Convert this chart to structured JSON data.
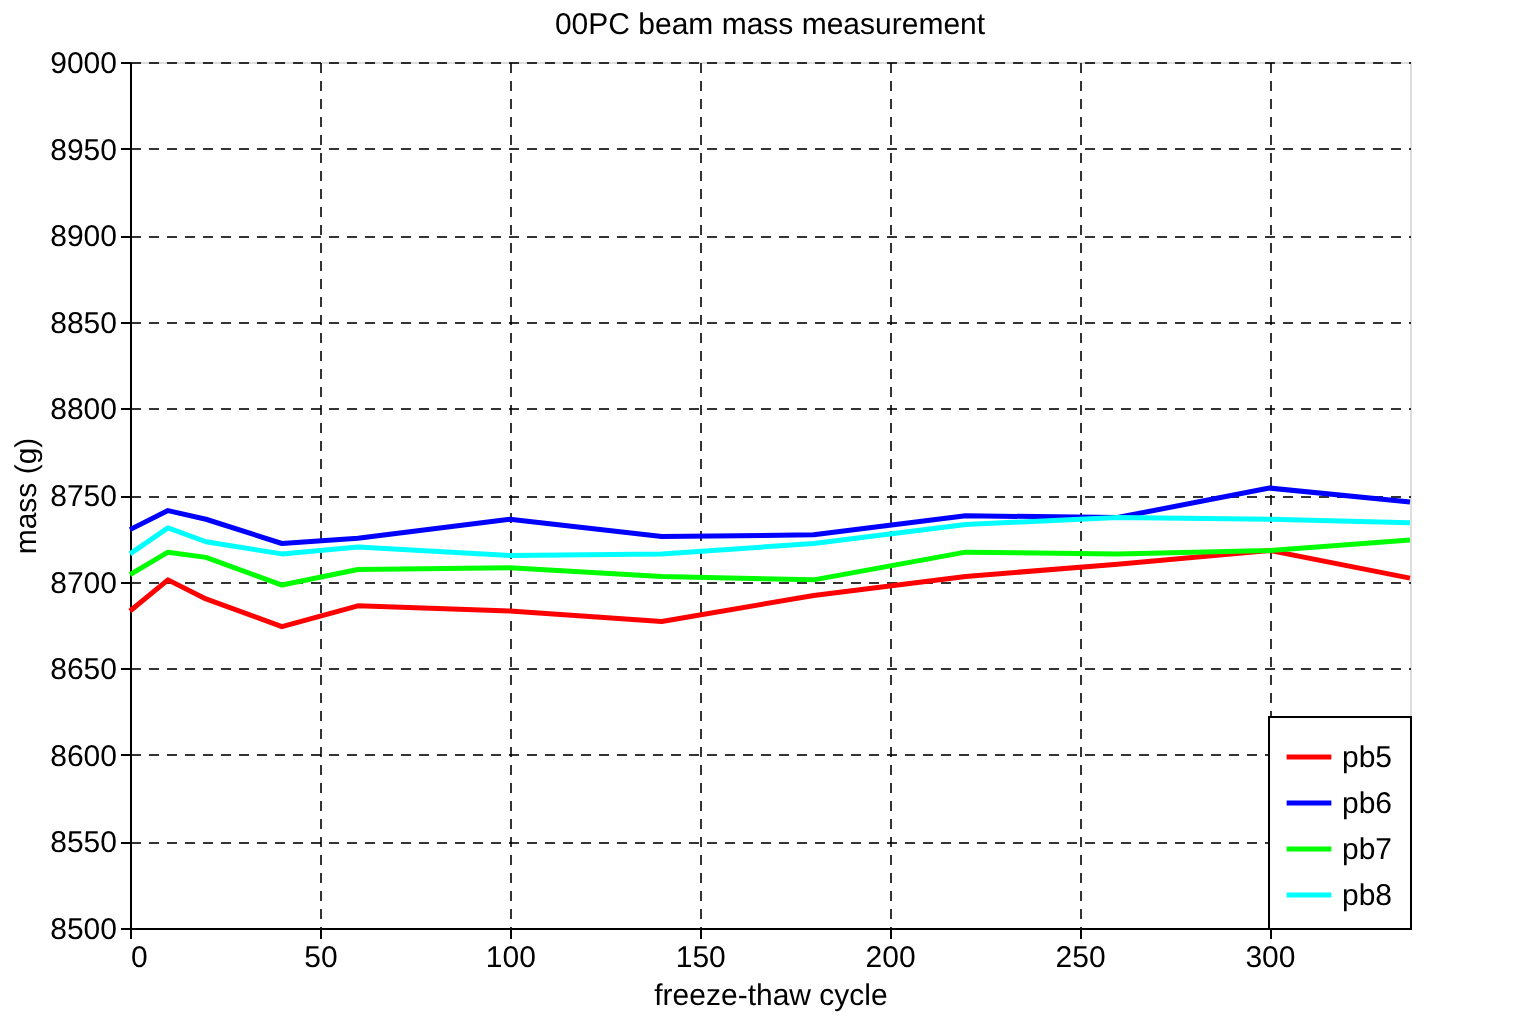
{
  "chart_data": {
    "type": "line",
    "title": "00PC beam mass measurement",
    "xlabel": "freeze-thaw cycle",
    "ylabel": "mass (g)",
    "x": [
      0,
      10,
      20,
      40,
      60,
      100,
      140,
      180,
      220,
      260,
      300,
      337
    ],
    "series": [
      {
        "name": "pb5",
        "color": "#ff0000",
        "values": [
          8683,
          8701,
          8690,
          8674,
          8686,
          8683,
          8677,
          8692,
          8703,
          8710,
          8718,
          8702
        ]
      },
      {
        "name": "pb6",
        "color": "#0000ff",
        "values": [
          8730,
          8741,
          8736,
          8722,
          8725,
          8736,
          8726,
          8727,
          8738,
          8737,
          8754,
          8746
        ]
      },
      {
        "name": "pb7",
        "color": "#00ff00",
        "values": [
          8704,
          8717,
          8714,
          8698,
          8707,
          8708,
          8703,
          8701,
          8717,
          8716,
          8718,
          8724
        ]
      },
      {
        "name": "pb8",
        "color": "#00ffff",
        "values": [
          8716,
          8731,
          8723,
          8716,
          8720,
          8715,
          8716,
          8722,
          8733,
          8737,
          8736,
          8734
        ]
      }
    ],
    "xlim": [
      0,
      337
    ],
    "xticks": [
      0,
      50,
      100,
      150,
      200,
      250,
      300
    ],
    "ylim": [
      8500,
      9000
    ],
    "yticks": [
      8500,
      8550,
      8600,
      8650,
      8700,
      8750,
      8800,
      8850,
      8900,
      8950,
      9000
    ],
    "grid": true,
    "legend": "bottom right",
    "line_style": "solid",
    "marker": "none"
  }
}
